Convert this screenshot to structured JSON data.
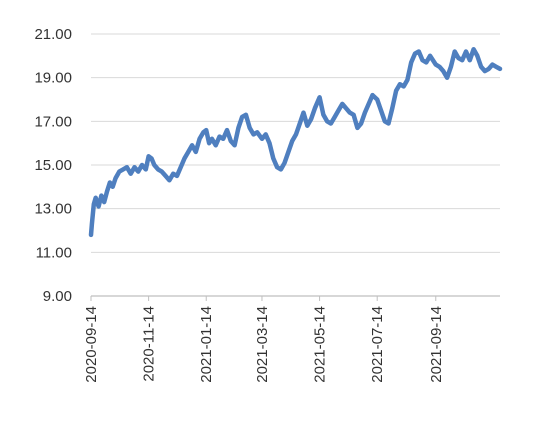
{
  "chart_data": {
    "type": "line",
    "title": "",
    "xlabel": "",
    "ylabel": "",
    "ylim": [
      9,
      21
    ],
    "yticks": [
      9,
      11,
      13,
      15,
      17,
      19,
      21
    ],
    "ytick_labels": [
      "9.00",
      "11.00",
      "13.00",
      "15.00",
      "17.00",
      "19.00",
      "21.00"
    ],
    "xlim": [
      "2020-09-14",
      "2021-11-21"
    ],
    "xticks": [
      "2020-09-14",
      "2020-11-14",
      "2021-01-14",
      "2021-03-14",
      "2021-05-14",
      "2021-07-14",
      "2021-09-14"
    ],
    "grid": "horizontal",
    "legend": "none",
    "line_color": "#4F7FBF",
    "grid_color": "#D9D9D9",
    "axis_color": "#BFBFBF",
    "series": [
      {
        "x": [
          "2020-09-14",
          "2020-09-15",
          "2020-09-17",
          "2020-09-19",
          "2020-09-22",
          "2020-09-25",
          "2020-09-28",
          "2020-10-01",
          "2020-10-04",
          "2020-10-07",
          "2020-10-10",
          "2020-10-14",
          "2020-10-18",
          "2020-10-22",
          "2020-10-26",
          "2020-10-30",
          "2020-11-03",
          "2020-11-07",
          "2020-11-11",
          "2020-11-14",
          "2020-11-17",
          "2020-11-20",
          "2020-11-24",
          "2020-11-28",
          "2020-12-02",
          "2020-12-06",
          "2020-12-10",
          "2020-12-14",
          "2020-12-18",
          "2020-12-22",
          "2020-12-26",
          "2020-12-30",
          "2021-01-03",
          "2021-01-07",
          "2021-01-11",
          "2021-01-14",
          "2021-01-17",
          "2021-01-20",
          "2021-01-24",
          "2021-01-28",
          "2021-02-01",
          "2021-02-05",
          "2021-02-09",
          "2021-02-13",
          "2021-02-17",
          "2021-02-21",
          "2021-02-25",
          "2021-03-01",
          "2021-03-05",
          "2021-03-09",
          "2021-03-14",
          "2021-03-18",
          "2021-03-22",
          "2021-03-26",
          "2021-03-30",
          "2021-04-03",
          "2021-04-07",
          "2021-04-11",
          "2021-04-15",
          "2021-04-19",
          "2021-04-23",
          "2021-04-27",
          "2021-05-01",
          "2021-05-05",
          "2021-05-09",
          "2021-05-14",
          "2021-05-18",
          "2021-05-22",
          "2021-05-26",
          "2021-05-30",
          "2021-06-03",
          "2021-06-07",
          "2021-06-11",
          "2021-06-15",
          "2021-06-19",
          "2021-06-23",
          "2021-06-27",
          "2021-07-01",
          "2021-07-05",
          "2021-07-09",
          "2021-07-14",
          "2021-07-18",
          "2021-07-22",
          "2021-07-26",
          "2021-07-30",
          "2021-08-03",
          "2021-08-07",
          "2021-08-11",
          "2021-08-15",
          "2021-08-19",
          "2021-08-23",
          "2021-08-27",
          "2021-08-31",
          "2021-09-04",
          "2021-09-08",
          "2021-09-14",
          "2021-09-18",
          "2021-09-22",
          "2021-09-26",
          "2021-09-30",
          "2021-10-04",
          "2021-10-08",
          "2021-10-12",
          "2021-10-16",
          "2021-10-20",
          "2021-10-24",
          "2021-10-28",
          "2021-11-01",
          "2021-11-05",
          "2021-11-09",
          "2021-11-13",
          "2021-11-17",
          "2021-11-21"
        ],
        "values": [
          11.8,
          12.3,
          13.2,
          13.5,
          13.1,
          13.6,
          13.3,
          13.8,
          14.2,
          14.0,
          14.4,
          14.7,
          14.8,
          14.9,
          14.6,
          14.9,
          14.7,
          15.0,
          14.8,
          15.4,
          15.3,
          15.0,
          14.8,
          14.7,
          14.5,
          14.3,
          14.6,
          14.5,
          14.9,
          15.3,
          15.6,
          15.9,
          15.6,
          16.2,
          16.5,
          16.6,
          16.0,
          16.2,
          15.9,
          16.3,
          16.2,
          16.6,
          16.1,
          15.9,
          16.7,
          17.2,
          17.3,
          16.7,
          16.4,
          16.5,
          16.2,
          16.4,
          16.0,
          15.3,
          14.9,
          14.8,
          15.1,
          15.6,
          16.1,
          16.4,
          16.9,
          17.4,
          16.8,
          17.1,
          17.6,
          18.1,
          17.3,
          17.0,
          16.9,
          17.2,
          17.5,
          17.8,
          17.6,
          17.4,
          17.3,
          16.7,
          16.9,
          17.4,
          17.8,
          18.2,
          18.0,
          17.5,
          17.0,
          16.9,
          17.6,
          18.4,
          18.7,
          18.6,
          18.9,
          19.7,
          20.1,
          20.2,
          19.8,
          19.7,
          20.0,
          19.6,
          19.5,
          19.3,
          19.0,
          19.5,
          20.2,
          19.9,
          19.8,
          20.2,
          19.8,
          20.3,
          20.0,
          19.5,
          19.3,
          19.4,
          19.6,
          19.5,
          19.4
        ]
      }
    ]
  }
}
